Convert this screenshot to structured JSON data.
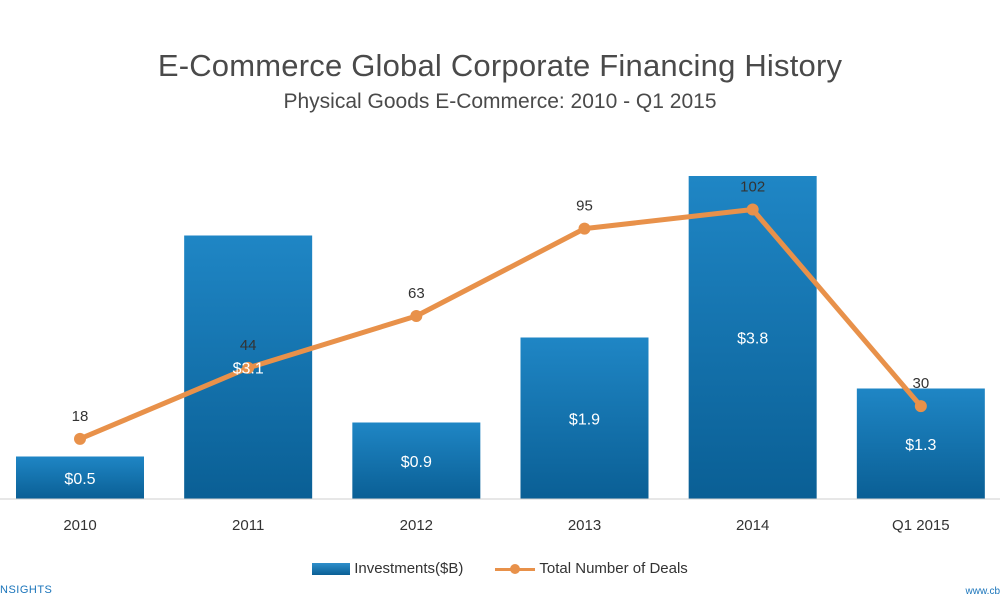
{
  "chart_data": {
    "type": "bar",
    "title": "E-Commerce Global Corporate Financing History",
    "subtitle": "Physical Goods E-Commerce: 2010 - Q1 2015",
    "categories": [
      "2010",
      "2011",
      "2012",
      "2013",
      "2014",
      "Q1 2015"
    ],
    "series": [
      {
        "name": "Investments($B)",
        "type": "bar",
        "values": [
          0.5,
          3.1,
          0.9,
          1.9,
          3.8,
          1.3
        ],
        "labels": [
          "$0.5",
          "$3.1",
          "$0.9",
          "$1.9",
          "$3.8",
          "$1.3"
        ],
        "color": "#0b6fab"
      },
      {
        "name": "Total Number of Deals",
        "type": "line",
        "values": [
          18,
          44,
          63,
          95,
          102,
          30
        ],
        "labels": [
          "18",
          "44",
          "63",
          "95",
          "102",
          "30"
        ],
        "color": "#e8914a"
      }
    ],
    "legend_position": "bottom",
    "grid": false
  },
  "footer": {
    "left": "NSIGHTS",
    "right": "www.cb"
  }
}
